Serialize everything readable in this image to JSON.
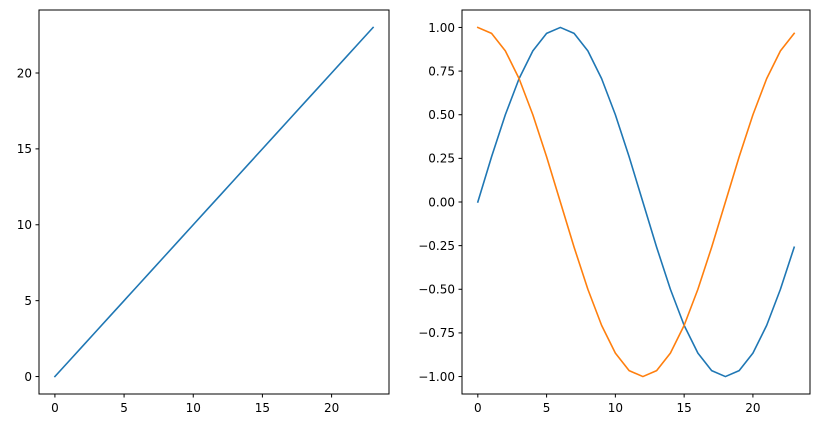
{
  "chart_data": [
    {
      "type": "line",
      "title": "",
      "xlabel": "",
      "ylabel": "",
      "xlim": [
        -1.15,
        24.15
      ],
      "ylim": [
        -1.15,
        24.15
      ],
      "grid": false,
      "xticks": [
        0,
        5,
        10,
        15,
        20
      ],
      "xtick_labels": [
        "0",
        "5",
        "10",
        "15",
        "20"
      ],
      "yticks": [
        0,
        5,
        10,
        15,
        20
      ],
      "ytick_labels": [
        "0",
        "5",
        "10",
        "15",
        "20"
      ],
      "x": [
        0,
        1,
        2,
        3,
        4,
        5,
        6,
        7,
        8,
        9,
        10,
        11,
        12,
        13,
        14,
        15,
        16,
        17,
        18,
        19,
        20,
        21,
        22,
        23
      ],
      "series": [
        {
          "color": "#1f77b4",
          "values": [
            0,
            1,
            2,
            3,
            4,
            5,
            6,
            7,
            8,
            9,
            10,
            11,
            12,
            13,
            14,
            15,
            16,
            17,
            18,
            19,
            20,
            21,
            22,
            23
          ]
        }
      ]
    },
    {
      "type": "line",
      "title": "",
      "xlabel": "",
      "ylabel": "",
      "xlim": [
        -1.15,
        24.15
      ],
      "ylim": [
        -1.1,
        1.1
      ],
      "grid": false,
      "xticks": [
        0,
        5,
        10,
        15,
        20
      ],
      "xtick_labels": [
        "0",
        "5",
        "10",
        "15",
        "20"
      ],
      "yticks": [
        -1.0,
        -0.75,
        -0.5,
        -0.25,
        0.0,
        0.25,
        0.5,
        0.75,
        1.0
      ],
      "ytick_labels": [
        "−1.00",
        "−0.75",
        "−0.50",
        "−0.25",
        "0.00",
        "0.25",
        "0.50",
        "0.75",
        "1.00"
      ],
      "x": [
        0,
        1,
        2,
        3,
        4,
        5,
        6,
        7,
        8,
        9,
        10,
        11,
        12,
        13,
        14,
        15,
        16,
        17,
        18,
        19,
        20,
        21,
        22,
        23
      ],
      "series": [
        {
          "color": "#1f77b4",
          "values": [
            0.0,
            0.259,
            0.5,
            0.707,
            0.866,
            0.966,
            1.0,
            0.966,
            0.866,
            0.707,
            0.5,
            0.259,
            0.0,
            -0.259,
            -0.5,
            -0.707,
            -0.866,
            -0.966,
            -1.0,
            -0.966,
            -0.866,
            -0.707,
            -0.5,
            -0.259
          ]
        },
        {
          "color": "#ff7f0e",
          "values": [
            1.0,
            0.966,
            0.866,
            0.707,
            0.5,
            0.259,
            0.0,
            -0.259,
            -0.5,
            -0.707,
            -0.866,
            -0.966,
            -1.0,
            -0.966,
            -0.866,
            -0.707,
            -0.5,
            -0.259,
            0.0,
            0.259,
            0.5,
            0.707,
            0.866,
            0.966
          ]
        }
      ]
    }
  ]
}
